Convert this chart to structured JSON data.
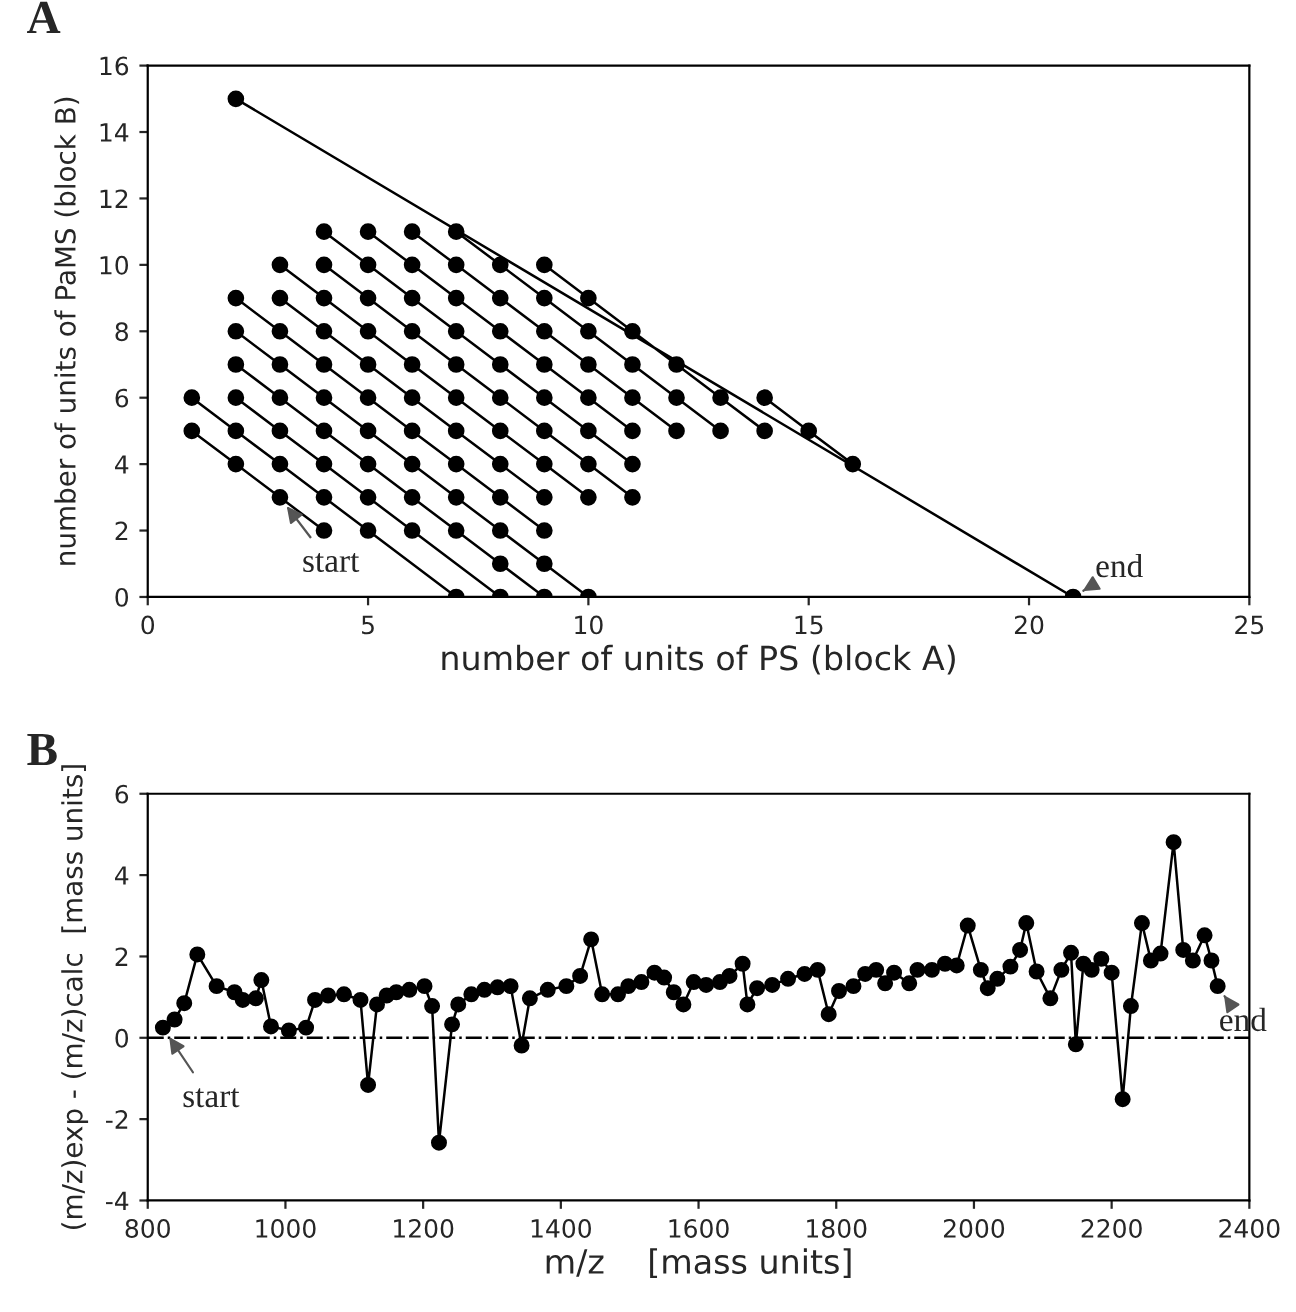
{
  "chart_data": [
    {
      "type": "line",
      "title": "A",
      "xlabel": "number of units of PS (block A)",
      "ylabel": "number of units of PaMS (block B)",
      "xlim": [
        0,
        25
      ],
      "xticks": [
        0,
        5,
        10,
        15,
        20,
        25
      ],
      "ylim": [
        0,
        16
      ],
      "yticks": [
        0,
        2,
        4,
        6,
        8,
        10,
        12,
        14,
        16
      ],
      "marker": "circle",
      "line_style": "solid",
      "series": [
        {
          "color": "#000000",
          "x": [
            1,
            2,
            3,
            4,
            null,
            1,
            2,
            3,
            4,
            5,
            7,
            null,
            2,
            3,
            4,
            5,
            6,
            8,
            null,
            2,
            3,
            4,
            5,
            6,
            7,
            8,
            9,
            null,
            2,
            3,
            4,
            5,
            6,
            7,
            8,
            9,
            10,
            null,
            2,
            3,
            4,
            5,
            6,
            7,
            8,
            9,
            null,
            3,
            4,
            5,
            6,
            7,
            8,
            9,
            null,
            3,
            4,
            5,
            6,
            7,
            8,
            9,
            10,
            null,
            4,
            5,
            6,
            7,
            8,
            9,
            10,
            11,
            null,
            4,
            5,
            6,
            7,
            8,
            9,
            10,
            11,
            null,
            5,
            6,
            7,
            8,
            9,
            10,
            11,
            null,
            6,
            7,
            8,
            9,
            10,
            11,
            12,
            null,
            7,
            8,
            9,
            10,
            11,
            12,
            13,
            null,
            9,
            10,
            11,
            12,
            13,
            14,
            null,
            14,
            15,
            16,
            null,
            2,
            21
          ],
          "values": [
            5,
            4,
            3,
            2,
            null,
            6,
            5,
            4,
            3,
            2,
            0,
            null,
            6,
            5,
            4,
            3,
            2,
            0,
            null,
            7,
            6,
            5,
            4,
            3,
            2,
            1,
            0,
            null,
            8,
            7,
            6,
            5,
            4,
            3,
            2,
            1,
            0,
            null,
            9,
            8,
            7,
            6,
            5,
            4,
            3,
            2,
            null,
            9,
            8,
            7,
            6,
            5,
            4,
            3,
            null,
            10,
            9,
            8,
            7,
            6,
            5,
            4,
            3,
            null,
            10,
            9,
            8,
            7,
            6,
            5,
            4,
            3,
            null,
            11,
            10,
            9,
            8,
            7,
            6,
            5,
            4,
            null,
            11,
            10,
            9,
            8,
            7,
            6,
            5,
            null,
            11,
            10,
            9,
            8,
            7,
            6,
            5,
            null,
            11,
            10,
            9,
            8,
            7,
            6,
            5,
            null,
            10,
            9,
            8,
            7,
            6,
            5,
            null,
            6,
            5,
            4,
            null,
            15,
            0
          ]
        }
      ],
      "annotations": [
        {
          "text": "start",
          "x": 3,
          "y": 3
        },
        {
          "text": "end",
          "x": 21,
          "y": 0
        }
      ]
    },
    {
      "type": "line",
      "title": "B",
      "xlabel": "m/z    [mass units]",
      "ylabel": "(m/z)exp - (m/z)calc  [mass units]",
      "xlim": [
        800,
        2400
      ],
      "xticks": [
        800,
        1000,
        1200,
        1400,
        1600,
        1800,
        2000,
        2200,
        2400
      ],
      "ylim": [
        -4,
        6
      ],
      "yticks": [
        -4,
        -2,
        0,
        2,
        4,
        6
      ],
      "marker": "circle",
      "line_style": "solid",
      "series": [
        {
          "color": "#000000",
          "x": [
            822,
            839,
            853,
            872,
            900,
            926,
            938,
            957,
            965,
            979,
            1005,
            1030,
            1043,
            1062,
            1085,
            1109,
            1120,
            1133,
            1147,
            1161,
            1180,
            1202,
            1213,
            1223,
            1242,
            1251,
            1270,
            1289,
            1308,
            1327,
            1343,
            1355,
            1381,
            1408,
            1428,
            1444,
            1460,
            1483,
            1498,
            1517,
            1536,
            1550,
            1564,
            1578,
            1593,
            1611,
            1631,
            1645,
            1664,
            1671,
            1685,
            1707,
            1730,
            1754,
            1773,
            1789,
            1804,
            1825,
            1842,
            1858,
            1871,
            1884,
            1906,
            1918,
            1939,
            1958,
            1975,
            1991,
            2010,
            2020,
            2034,
            2053,
            2067,
            2076,
            2091,
            2111,
            2127,
            2141,
            2148,
            2159,
            2171,
            2185,
            2200,
            2216,
            2228,
            2244,
            2257,
            2271,
            2290,
            2304,
            2318,
            2335,
            2345,
            2354
          ],
          "values": [
            0.25,
            0.45,
            0.85,
            2.05,
            1.27,
            1.12,
            0.93,
            0.97,
            1.42,
            0.28,
            0.18,
            0.25,
            0.93,
            1.04,
            1.07,
            0.93,
            -1.16,
            0.82,
            1.04,
            1.12,
            1.18,
            1.27,
            0.78,
            -2.58,
            0.33,
            0.82,
            1.07,
            1.18,
            1.24,
            1.27,
            -0.19,
            0.97,
            1.18,
            1.27,
            1.52,
            2.42,
            1.07,
            1.07,
            1.27,
            1.37,
            1.6,
            1.48,
            1.12,
            0.82,
            1.37,
            1.3,
            1.37,
            1.52,
            1.82,
            0.82,
            1.22,
            1.3,
            1.45,
            1.57,
            1.67,
            0.58,
            1.15,
            1.27,
            1.57,
            1.67,
            1.34,
            1.6,
            1.34,
            1.67,
            1.67,
            1.82,
            1.78,
            2.76,
            1.67,
            1.22,
            1.45,
            1.75,
            2.16,
            2.82,
            1.63,
            0.97,
            1.67,
            2.09,
            -0.16,
            1.82,
            1.67,
            1.94,
            1.6,
            -1.51,
            0.78,
            2.82,
            1.9,
            2.07,
            4.81,
            2.16,
            1.9,
            2.52,
            1.9,
            1.27
          ]
        }
      ],
      "ref_lines": [
        {
          "axis": "y",
          "value": 0,
          "line_style": "dashdot",
          "color": "#000000"
        }
      ],
      "annotations": [
        {
          "text": "start",
          "x": 822,
          "y": 0.25
        },
        {
          "text": "end",
          "x": 2354,
          "y": 1.27
        }
      ]
    }
  ]
}
